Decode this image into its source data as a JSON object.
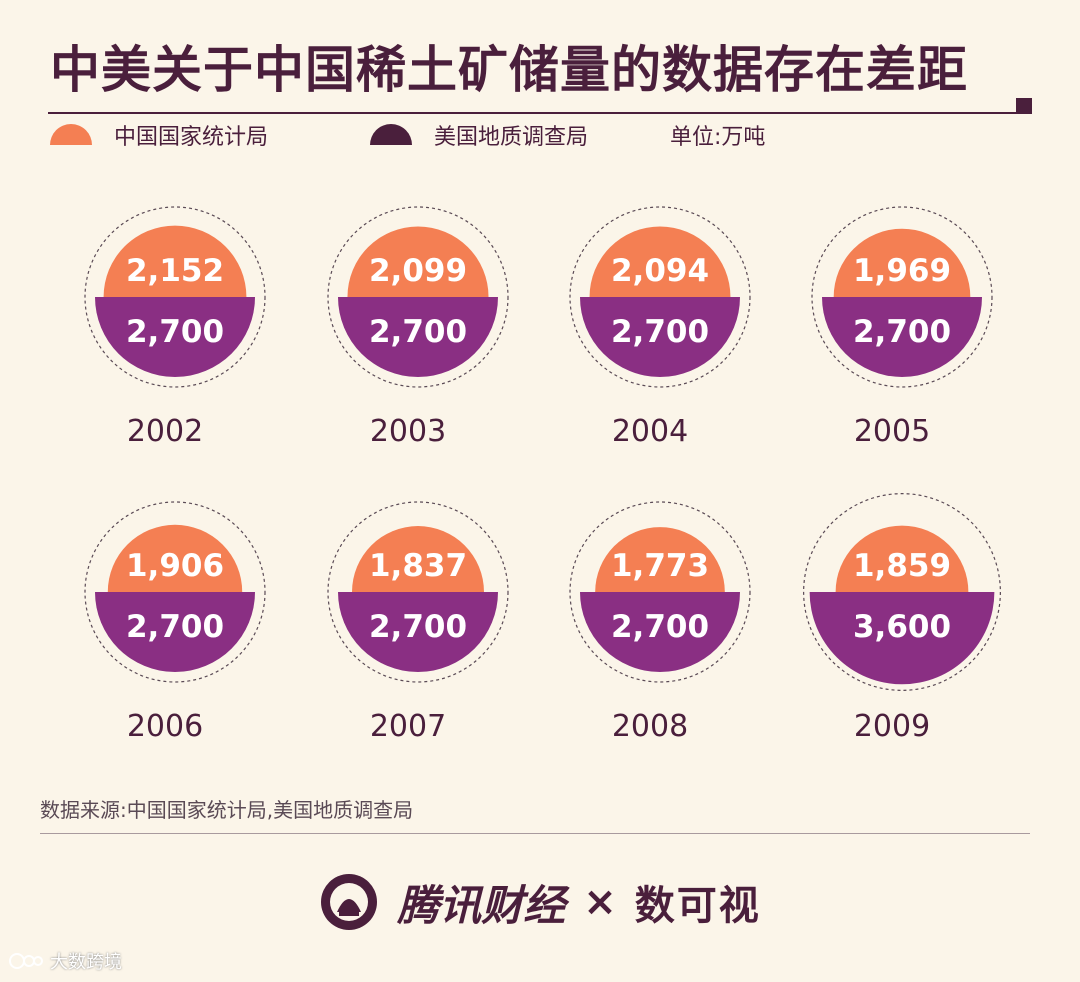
{
  "title": "中美关于中国稀土矿储量的数据存在差距",
  "legend": {
    "china": "中国国家统计局",
    "us": "美国地质调查局",
    "unit": "单位:万吨"
  },
  "colors": {
    "china": "#f47f53",
    "us": "#8a2f83",
    "dark": "#4a1f3c",
    "background": "#fbf5e9"
  },
  "chart_data": {
    "type": "semicircle-comparison",
    "title": "中美关于中国稀土矿储量的数据存在差距",
    "unit": "万吨",
    "categories": [
      "2002",
      "2003",
      "2004",
      "2005",
      "2006",
      "2007",
      "2008",
      "2009"
    ],
    "series": [
      {
        "name": "中国国家统计局",
        "values": [
          2152,
          2099,
          2094,
          1969,
          1906,
          1837,
          1773,
          1859
        ],
        "labels": [
          "2,152",
          "2,099",
          "2,094",
          "1,969",
          "1,906",
          "1,837",
          "1,773",
          "1,859"
        ]
      },
      {
        "name": "美国地质调查局",
        "values": [
          2700,
          2700,
          2700,
          2700,
          2700,
          2700,
          2700,
          3600
        ],
        "labels": [
          "2,700",
          "2,700",
          "2,700",
          "2,700",
          "2,700",
          "2,700",
          "2,700",
          "3,600"
        ]
      }
    ]
  },
  "source": "数据来源:中国国家统计局,美国地质调查局",
  "footer": {
    "brand": "腾讯财经",
    "times": "×",
    "partner": "数可视"
  },
  "corner": "大数跨境"
}
